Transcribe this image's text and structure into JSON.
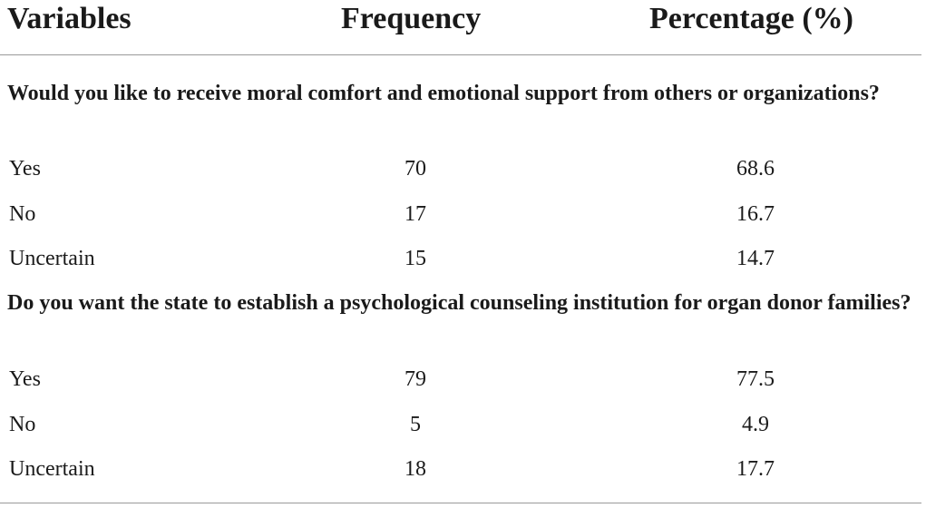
{
  "header": {
    "variables": "Variables",
    "frequency": "Frequency",
    "percentage": "Percentage (%)"
  },
  "sections": [
    {
      "title": "Would you like to receive moral comfort and emotional support from others or organizations?",
      "rows": [
        {
          "label": "Yes",
          "frequency": "70",
          "percentage": "68.6"
        },
        {
          "label": "No",
          "frequency": "17",
          "percentage": "16.7"
        },
        {
          "label": "Uncertain",
          "frequency": "15",
          "percentage": "14.7"
        }
      ]
    },
    {
      "title": "Do you want the state to establish a psychological counseling institution for organ donor families?",
      "rows": [
        {
          "label": "Yes",
          "frequency": "79",
          "percentage": "77.5"
        },
        {
          "label": "No",
          "frequency": "5",
          "percentage": "4.9"
        },
        {
          "label": "Uncertain",
          "frequency": "18",
          "percentage": "17.7"
        }
      ]
    }
  ]
}
